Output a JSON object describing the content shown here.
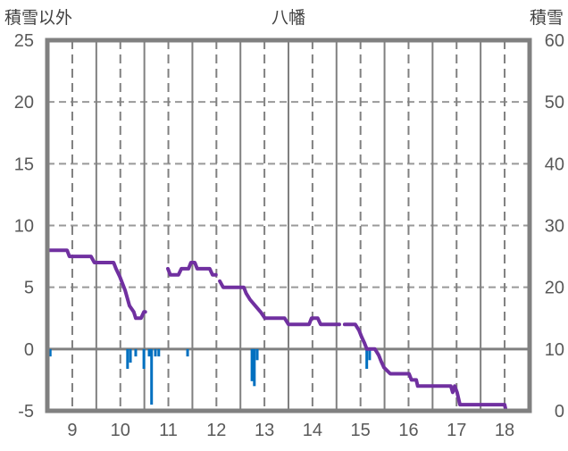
{
  "chart_data": {
    "type": "line",
    "title": "八幡",
    "ylabel_left": "積雪以外",
    "ylabel_right": "積雪",
    "xlim": [
      8.48,
      18.52
    ],
    "ylim_left": [
      -5,
      25
    ],
    "ylim_right": [
      0,
      60
    ],
    "x_ticks": [
      9,
      10,
      11,
      12,
      13,
      14,
      15,
      16,
      17,
      18
    ],
    "y_ticks_left": [
      25,
      20,
      15,
      10,
      5,
      0,
      -5
    ],
    "y_ticks_right": [
      60,
      50,
      40,
      30,
      20,
      10,
      0
    ],
    "grid": true,
    "colors": {
      "snow_depth": "#7030A0",
      "other": "#0070C0",
      "grid": "#808080",
      "frame": "#808080"
    },
    "series": [
      {
        "name": "積雪",
        "axis": "right",
        "type": "line",
        "points": [
          [
            8.48,
            26
          ],
          [
            8.89,
            26
          ],
          [
            8.94,
            25
          ],
          [
            9.39,
            25
          ],
          [
            9.46,
            24
          ],
          [
            9.86,
            24
          ],
          [
            9.91,
            23
          ],
          [
            9.99,
            21.7
          ],
          [
            10.1,
            19.5
          ],
          [
            10.19,
            17
          ],
          [
            10.28,
            16
          ],
          [
            10.32,
            15
          ],
          [
            10.43,
            15
          ],
          [
            10.49,
            16
          ],
          [
            10.52,
            16
          ],
          null,
          [
            10.99,
            23
          ],
          [
            11.04,
            22
          ],
          [
            11.21,
            22
          ],
          [
            11.27,
            23
          ],
          [
            11.42,
            23
          ],
          [
            11.47,
            24
          ],
          [
            11.55,
            24
          ],
          [
            11.6,
            23
          ],
          [
            11.86,
            23
          ],
          [
            11.92,
            22
          ],
          [
            11.99,
            22
          ],
          null,
          [
            12.07,
            21
          ],
          [
            12.14,
            20
          ],
          [
            12.57,
            20
          ],
          [
            12.62,
            19
          ],
          [
            12.7,
            18
          ],
          [
            12.81,
            17
          ],
          [
            12.92,
            16
          ],
          [
            13.01,
            15
          ],
          [
            13.42,
            15
          ],
          [
            13.5,
            14
          ],
          [
            13.93,
            14
          ],
          [
            13.98,
            15
          ],
          [
            14.11,
            15
          ],
          [
            14.17,
            14
          ],
          [
            14.56,
            14
          ],
          null,
          [
            14.67,
            14
          ],
          [
            14.89,
            14
          ],
          [
            14.97,
            13
          ],
          [
            15.02,
            12
          ],
          [
            15.08,
            11
          ],
          [
            15.13,
            10
          ],
          [
            15.3,
            10
          ],
          [
            15.38,
            9
          ],
          [
            15.43,
            8
          ],
          [
            15.49,
            7
          ],
          [
            15.62,
            6
          ],
          [
            16.01,
            6
          ],
          [
            16.06,
            5
          ],
          [
            16.16,
            5
          ],
          [
            16.19,
            4
          ],
          [
            16.88,
            4
          ],
          [
            16.92,
            3
          ],
          [
            16.96,
            4
          ],
          [
            17.01,
            3
          ],
          [
            17.07,
            1
          ],
          [
            18.0,
            1
          ],
          [
            18.03,
            0
          ],
          [
            18.52,
            0
          ]
        ]
      },
      {
        "name": "積雪以外",
        "axis": "left",
        "type": "bar",
        "points": [
          [
            8.54,
            -0.6
          ],
          [
            10.15,
            -1.6
          ],
          [
            10.21,
            -1.1
          ],
          [
            10.32,
            -0.6
          ],
          [
            10.49,
            -1.6
          ],
          [
            10.6,
            -0.6
          ],
          [
            10.65,
            -4.5
          ],
          [
            10.73,
            -0.6
          ],
          [
            10.8,
            -0.6
          ],
          [
            11.4,
            -0.6
          ],
          [
            12.74,
            -2.6
          ],
          [
            12.79,
            -3.0
          ],
          [
            12.85,
            -0.9
          ],
          [
            15.13,
            -1.6
          ],
          [
            15.19,
            -0.9
          ]
        ]
      }
    ]
  }
}
